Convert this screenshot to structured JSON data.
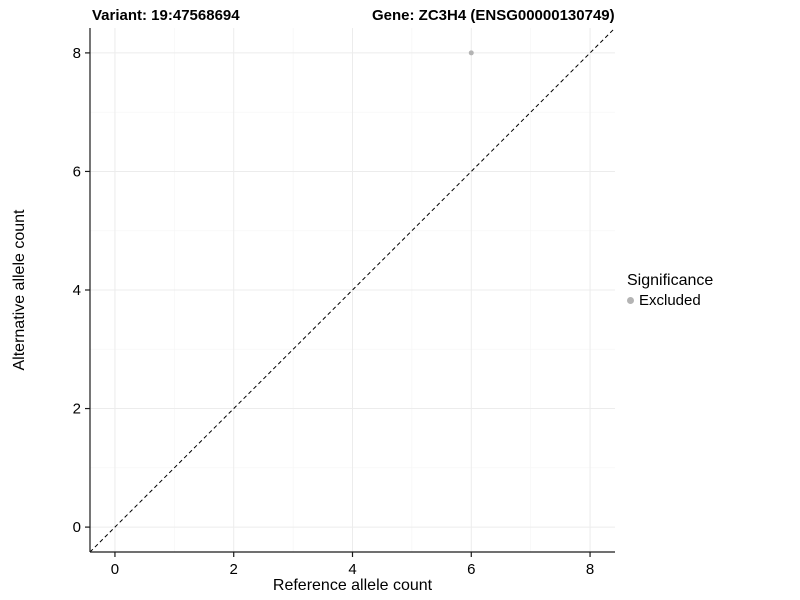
{
  "chart_data": {
    "type": "scatter",
    "title_left": "Variant: 19:47568694",
    "title_right": "Gene: ZC3H4 (ENSG00000130749)",
    "xlabel": "Reference allele count",
    "ylabel": "Alternative allele count",
    "xlim": [
      -0.42,
      8.42
    ],
    "ylim": [
      -0.42,
      8.42
    ],
    "xticks": [
      0,
      2,
      4,
      6,
      8
    ],
    "yticks": [
      0,
      2,
      4,
      6,
      8
    ],
    "grid": true,
    "points": [
      {
        "x": 6,
        "y": 8,
        "significance": "Excluded"
      }
    ],
    "reference_line": {
      "style": "dashed",
      "slope": 1,
      "intercept": 0,
      "color": "#000000"
    },
    "legend": {
      "title": "Significance",
      "position": "right",
      "items": [
        {
          "label": "Excluded",
          "color": "#b4b4b4"
        }
      ]
    },
    "colors": {
      "point_excluded": "#b4b4b4",
      "grid_major": "#ececec",
      "grid_minor": "#f6f6f6",
      "axis": "#1a1a1a",
      "text": "#000000",
      "background": "#ffffff"
    }
  }
}
